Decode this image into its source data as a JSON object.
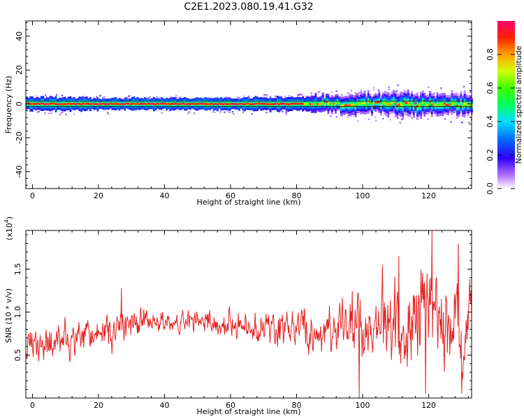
{
  "figure": {
    "title": "C2E1.2023.080.19.41.G32"
  },
  "chart_data": [
    {
      "type": "heatmap",
      "name": "spectrogram",
      "xlabel": "Height of straight line (km)",
      "ylabel": "Frequency (Hz)",
      "xlim": [
        -2,
        133
      ],
      "ylim": [
        -50,
        49
      ],
      "xticks": [
        0,
        20,
        40,
        60,
        80,
        100,
        120
      ],
      "yticks": [
        -40,
        -20,
        0,
        20,
        40
      ],
      "grid": false,
      "description_of_data": "Energy concentrated near 0 Hz across all heights; band widens slightly beyond ~85 km",
      "band": {
        "x": [
          -2,
          10,
          20,
          30,
          40,
          50,
          60,
          70,
          80,
          85,
          90,
          95,
          100,
          105,
          110,
          115,
          120,
          125,
          130,
          133
        ],
        "halfwidth_hz": [
          4,
          4,
          3.5,
          3.5,
          3.5,
          3.5,
          3.5,
          4,
          4,
          5,
          5,
          5.5,
          6,
          6,
          7,
          7,
          6.5,
          6,
          7,
          6
        ],
        "peak_amplitude": [
          0.9,
          0.9,
          0.95,
          0.95,
          0.95,
          0.95,
          0.95,
          0.9,
          0.85,
          0.6,
          0.5,
          0.5,
          0.45,
          0.45,
          0.4,
          0.45,
          0.45,
          0.4,
          0.4,
          0.4
        ]
      },
      "colorbar": {
        "label": "Normalized spectral amplitude",
        "range": [
          0,
          1
        ],
        "ticks": [
          "0.0",
          "0.2",
          "0.4",
          "0.6",
          "0.8"
        ]
      }
    },
    {
      "type": "line",
      "name": "snr",
      "xlabel": "Height of straight line (km)",
      "ylabel": "SNR (10 * v/v)",
      "multiplier_label": "(x10",
      "multiplier_exp": "4",
      "multiplier_close": ")",
      "xlim": [
        -2,
        133
      ],
      "ylim": [
        0,
        1.95
      ],
      "xticks": [
        0,
        20,
        40,
        60,
        80,
        100,
        120
      ],
      "yticks": [
        0.5,
        1.0,
        1.5
      ],
      "ytick_labels": [
        "0.5",
        "1.0",
        "1.5"
      ],
      "color": "#e52222",
      "envelope": {
        "x": [
          -2,
          10,
          20,
          26,
          30,
          40,
          50,
          60,
          70,
          80,
          85,
          90,
          95,
          100,
          105,
          110,
          115,
          120,
          125,
          130,
          133
        ],
        "mean": [
          0.6,
          0.65,
          0.75,
          0.8,
          0.9,
          0.85,
          0.9,
          0.85,
          0.8,
          0.8,
          0.75,
          0.8,
          0.8,
          0.8,
          0.8,
          0.85,
          0.9,
          0.95,
          0.85,
          0.9,
          0.9
        ],
        "amplitude": [
          0.2,
          0.25,
          0.2,
          0.25,
          0.2,
          0.15,
          0.15,
          0.2,
          0.2,
          0.3,
          0.35,
          0.3,
          0.4,
          0.5,
          0.45,
          0.55,
          0.6,
          0.65,
          0.6,
          0.55,
          0.5
        ]
      },
      "notable_peaks": [
        {
          "x": 27,
          "y": 1.28
        },
        {
          "x": 106,
          "y": 1.55
        },
        {
          "x": 111,
          "y": 1.65
        },
        {
          "x": 121,
          "y": 1.95
        },
        {
          "x": 129,
          "y": 1.8
        }
      ],
      "notable_troughs": [
        {
          "x": 99,
          "y": 0.0
        },
        {
          "x": 119,
          "y": 0.05
        },
        {
          "x": 130,
          "y": 0.05
        }
      ],
      "grid": false
    }
  ]
}
